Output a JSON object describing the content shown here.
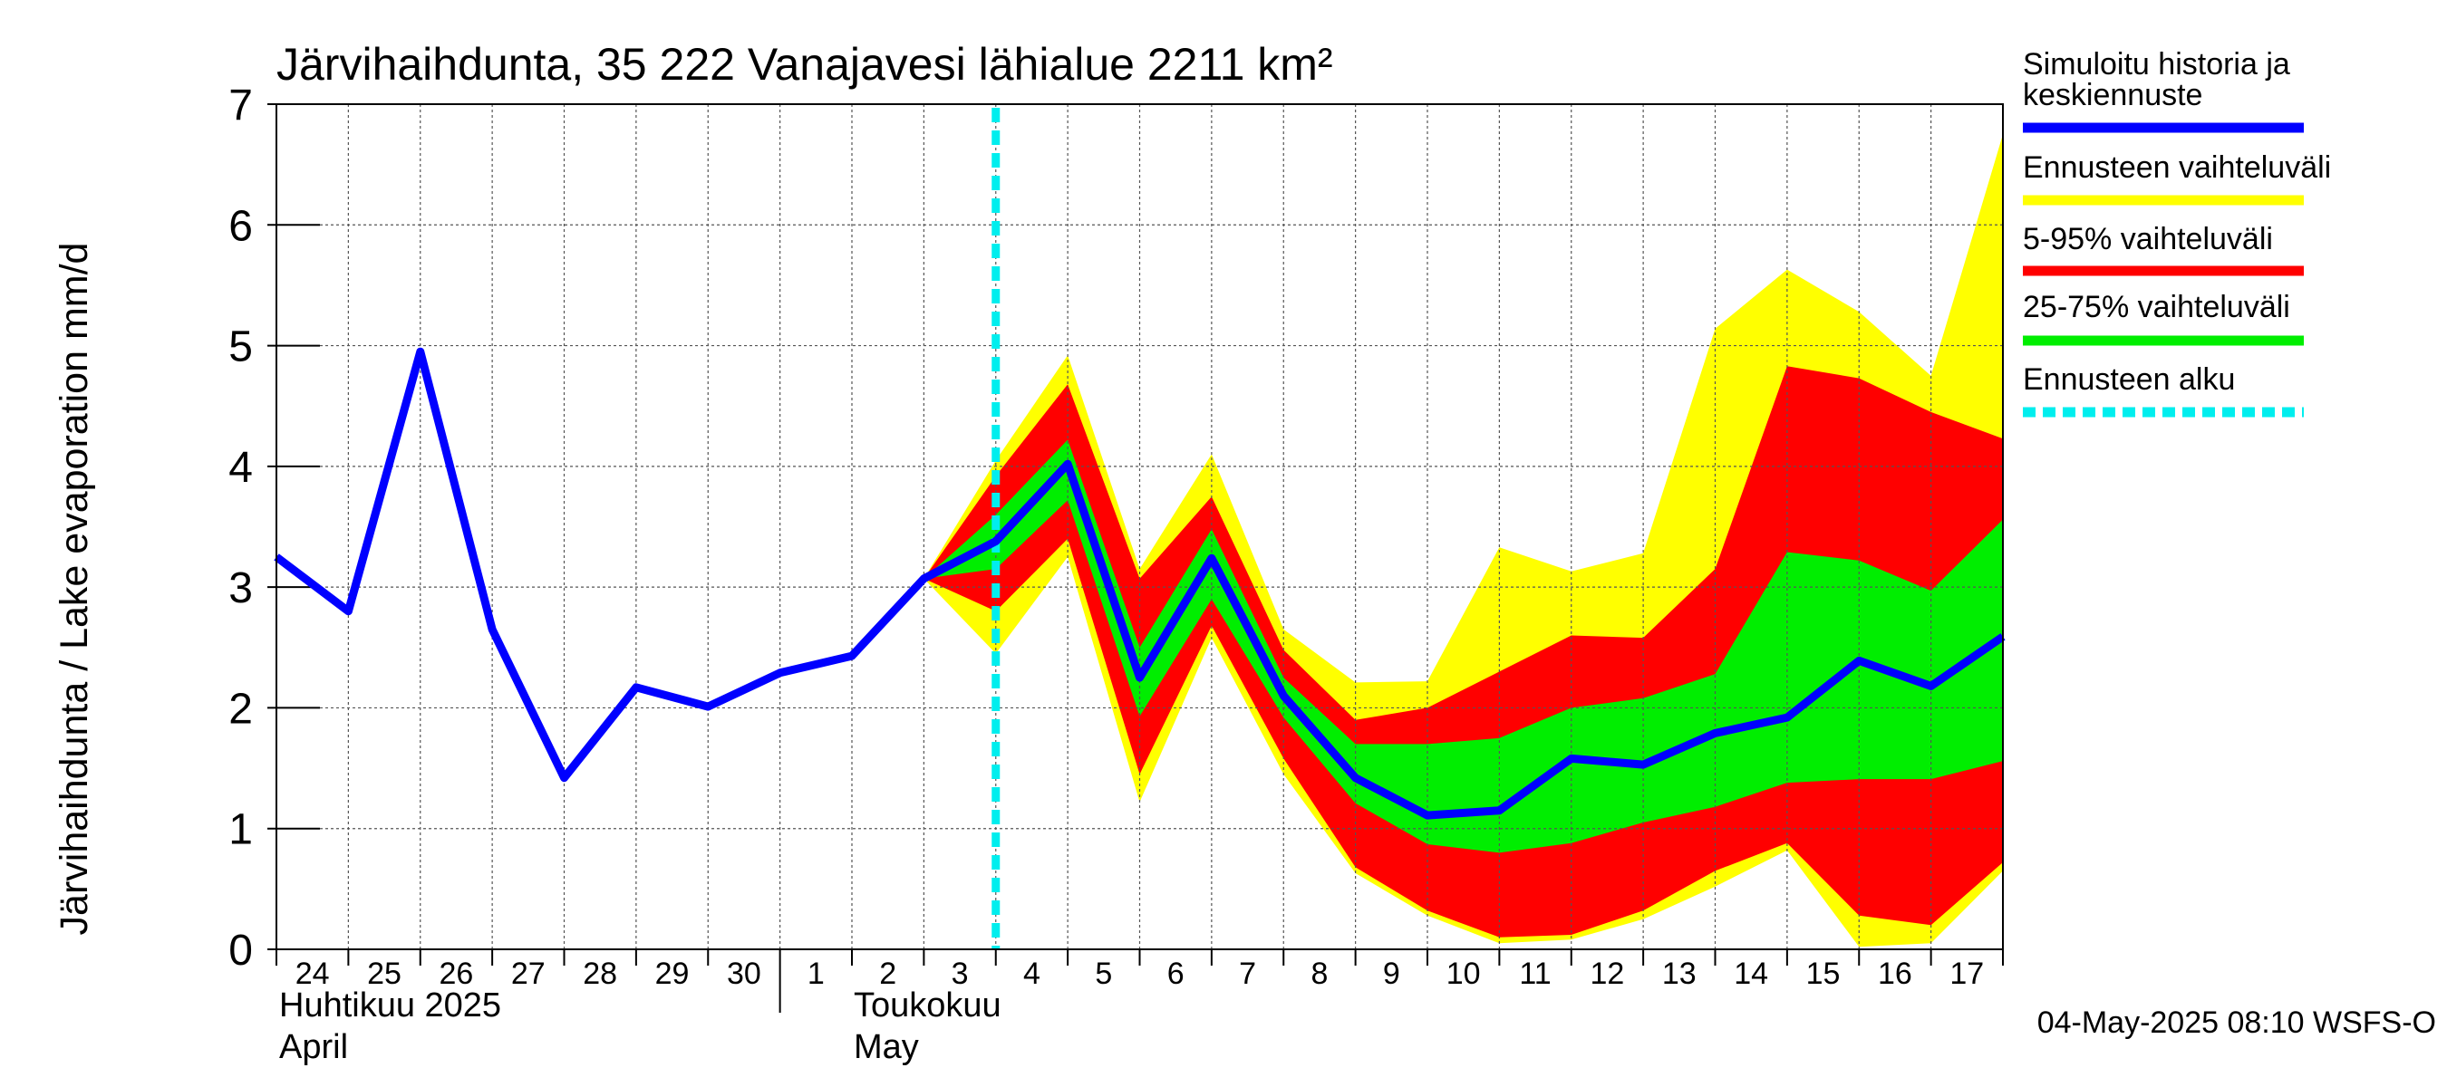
{
  "chart_data": {
    "type": "area",
    "title": "Järvihaihdunta, 35 222 Vanajavesi lähialue 2211 km²",
    "ylabel": "Järvihaihdunta / Lake evaporation   mm/d",
    "ylim": [
      0,
      7
    ],
    "yticks": [
      "0",
      "1",
      "2",
      "3",
      "4",
      "5",
      "6",
      "7"
    ],
    "grid": true,
    "x_day_labels": [
      "24",
      "25",
      "26",
      "27",
      "28",
      "29",
      "30",
      "1",
      "2",
      "3",
      "4",
      "5",
      "6",
      "7",
      "8",
      "9",
      "10",
      "11",
      "12",
      "13",
      "14",
      "15",
      "16",
      "17"
    ],
    "x_dates": [
      "2025-04-24",
      "2025-04-25",
      "2025-04-26",
      "2025-04-27",
      "2025-04-28",
      "2025-04-29",
      "2025-04-30",
      "2025-05-01",
      "2025-05-02",
      "2025-05-03",
      "2025-05-04",
      "2025-05-05",
      "2025-05-06",
      "2025-05-07",
      "2025-05-08",
      "2025-05-09",
      "2025-05-10",
      "2025-05-11",
      "2025-05-12",
      "2025-05-13",
      "2025-05-14",
      "2025-05-15",
      "2025-05-16",
      "2025-05-17",
      "2025-05-18"
    ],
    "month_labels": [
      {
        "fi": "Huhtikuu  2025",
        "en": "April"
      },
      {
        "fi": "Toukokuu",
        "en": "May"
      }
    ],
    "forecast_start": "2025-05-04",
    "history": {
      "name": "Simuloitu historia ja keskiennuste",
      "color": "#0000ff",
      "x": [
        "2025-04-24",
        "2025-04-25",
        "2025-04-26",
        "2025-04-27",
        "2025-04-28",
        "2025-04-29",
        "2025-04-30",
        "2025-05-01",
        "2025-05-02",
        "2025-05-03",
        "2025-05-04",
        "2025-05-05",
        "2025-05-06",
        "2025-05-07",
        "2025-05-08",
        "2025-05-09",
        "2025-05-10",
        "2025-05-11",
        "2025-05-12",
        "2025-05-13",
        "2025-05-14",
        "2025-05-15",
        "2025-05-16",
        "2025-05-17",
        "2025-05-18"
      ],
      "values": [
        3.25,
        2.8,
        4.95,
        2.65,
        1.42,
        2.17,
        2.01,
        2.29,
        2.43,
        3.07,
        3.38,
        4.02,
        2.25,
        3.24,
        2.1,
        1.42,
        1.11,
        1.15,
        1.58,
        1.53,
        1.79,
        1.92,
        2.39,
        2.18,
        2.59
      ]
    },
    "bands": [
      {
        "name": "Ennusteen vaihteluväli",
        "color": "#ffff00",
        "x": [
          "2025-05-03",
          "2025-05-04",
          "2025-05-05",
          "2025-05-06",
          "2025-05-07",
          "2025-05-08",
          "2025-05-09",
          "2025-05-10",
          "2025-05-11",
          "2025-05-12",
          "2025-05-13",
          "2025-05-14",
          "2025-05-15",
          "2025-05-16",
          "2025-05-17",
          "2025-05-18"
        ],
        "lower": [
          3.07,
          2.45,
          3.25,
          1.22,
          2.58,
          1.45,
          0.63,
          0.28,
          0.05,
          0.08,
          0.25,
          0.52,
          0.82,
          0.02,
          0.05,
          0.65
        ],
        "upper": [
          3.07,
          4.05,
          4.92,
          3.15,
          4.1,
          2.65,
          2.21,
          2.22,
          3.33,
          3.13,
          3.28,
          5.14,
          5.63,
          5.28,
          4.75,
          6.75
        ]
      },
      {
        "name": "5-95% vaihteluväli",
        "color": "#ff0000",
        "x": [
          "2025-05-03",
          "2025-05-04",
          "2025-05-05",
          "2025-05-06",
          "2025-05-07",
          "2025-05-08",
          "2025-05-09",
          "2025-05-10",
          "2025-05-11",
          "2025-05-12",
          "2025-05-13",
          "2025-05-14",
          "2025-05-15",
          "2025-05-16",
          "2025-05-17",
          "2025-05-18"
        ],
        "lower": [
          3.07,
          2.8,
          3.4,
          1.45,
          2.68,
          1.58,
          0.68,
          0.32,
          0.1,
          0.12,
          0.32,
          0.65,
          0.88,
          0.28,
          0.2,
          0.72
        ],
        "upper": [
          3.07,
          3.92,
          4.68,
          3.07,
          3.75,
          2.48,
          1.9,
          2.0,
          2.3,
          2.6,
          2.58,
          3.15,
          4.83,
          4.73,
          4.45,
          4.23
        ]
      },
      {
        "name": "25-75% vaihteluväli",
        "color": "#00ee00",
        "x": [
          "2025-05-03",
          "2025-05-04",
          "2025-05-05",
          "2025-05-06",
          "2025-05-07",
          "2025-05-08",
          "2025-05-09",
          "2025-05-10",
          "2025-05-11",
          "2025-05-12",
          "2025-05-13",
          "2025-05-14",
          "2025-05-15",
          "2025-05-16",
          "2025-05-17",
          "2025-05-18"
        ],
        "lower": [
          3.07,
          3.15,
          3.72,
          1.93,
          2.9,
          1.92,
          1.21,
          0.87,
          0.8,
          0.88,
          1.05,
          1.18,
          1.38,
          1.41,
          1.41,
          1.56
        ],
        "upper": [
          3.07,
          3.6,
          4.22,
          2.5,
          3.48,
          2.25,
          1.7,
          1.7,
          1.75,
          2.0,
          2.08,
          2.28,
          3.29,
          3.22,
          2.97,
          3.56
        ]
      }
    ],
    "legend": {
      "placement": "right",
      "items": [
        {
          "label_lines": [
            "Simuloitu historia ja",
            "keskiennuste"
          ],
          "color": "#0000ff",
          "style": "solid"
        },
        {
          "label_lines": [
            "Ennusteen vaihteluväli"
          ],
          "color": "#ffff00",
          "style": "solid"
        },
        {
          "label_lines": [
            "5-95% vaihteluväli"
          ],
          "color": "#ff0000",
          "style": "solid"
        },
        {
          "label_lines": [
            "25-75% vaihteluväli"
          ],
          "color": "#00ee00",
          "style": "solid"
        },
        {
          "label_lines": [
            "Ennusteen alku"
          ],
          "color": "#00eeee",
          "style": "dashed"
        }
      ]
    },
    "footer": "04-May-2025 08:10 WSFS-O"
  }
}
